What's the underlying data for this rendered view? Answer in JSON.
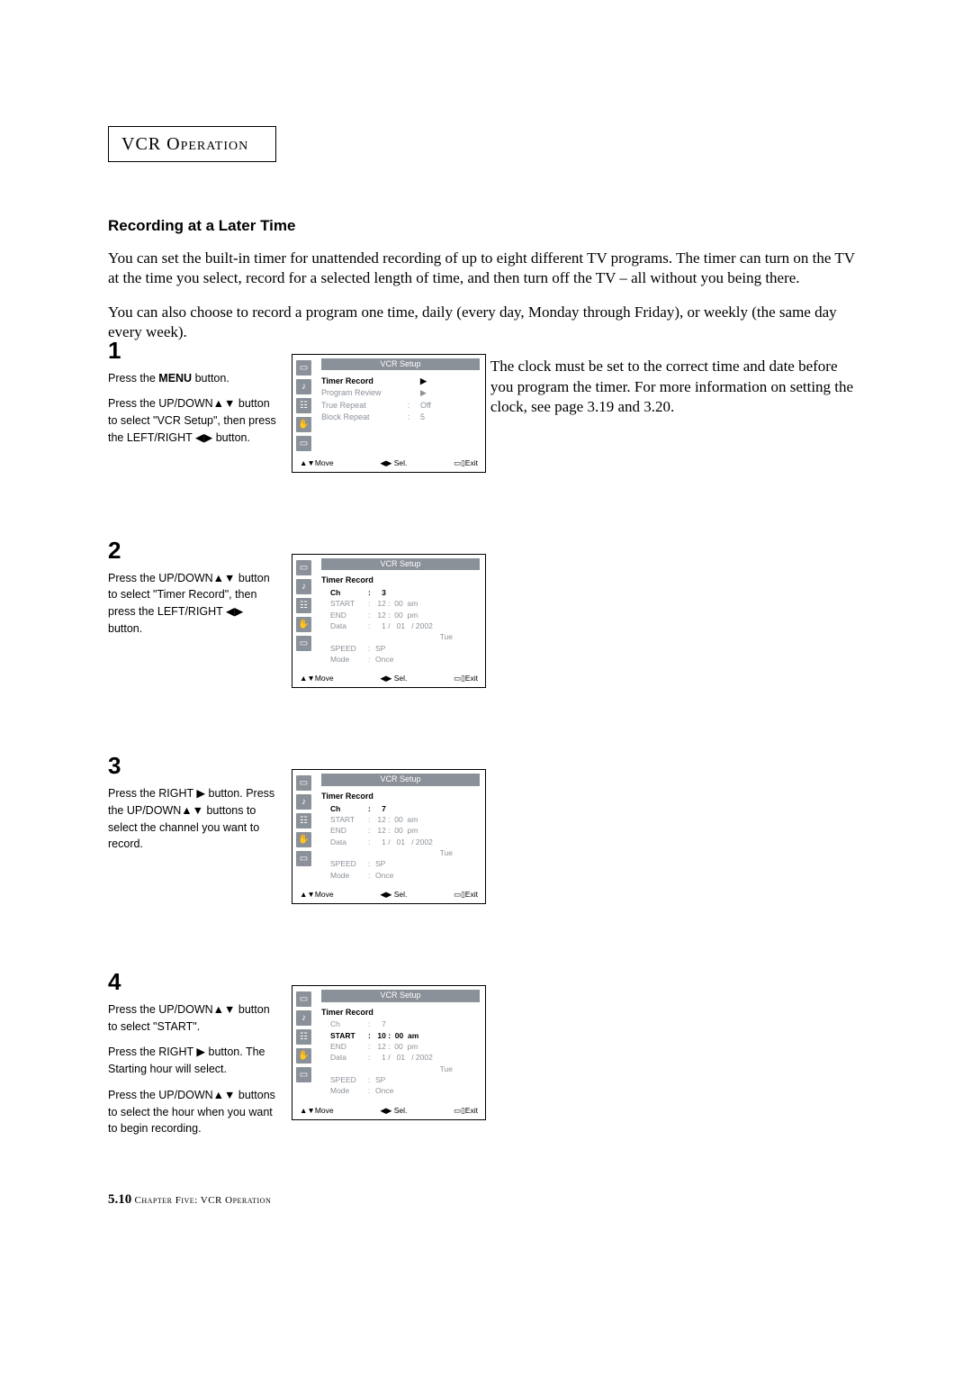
{
  "chapter": {
    "vcr": "VCR ",
    "operation": "Operation"
  },
  "section_heading": "Recording at a Later Time",
  "body_p1": "You can set the built-in timer for unattended recording of up to eight different TV programs. The timer can turn on the TV at the time you select, record for a selected length of time, and then turn off the TV – all without you being there.",
  "body_p2": "You can also choose to record a program one time, daily (every day, Monday through Friday), or weekly (the same day every week).",
  "hint_arrow": "◄",
  "hint_text": "The clock must be set to the correct time and date before you program the timer. For more information on setting the clock, see page 3.19 and 3.20.",
  "steps": {
    "s1": {
      "num": "1",
      "instr_a_pre": "Press the ",
      "instr_a_bold": "MENU",
      "instr_a_post": " button.",
      "instr_b": "Press the UP/DOWN▲▼ button to select \"VCR Setup\", then press the LEFT/RIGHT ◀▶ button.",
      "osd": {
        "title": "VCR Setup",
        "rows": [
          {
            "label": "Timer Record",
            "val": "▶",
            "hl": true
          },
          {
            "label": "Program Review",
            "val": "▶",
            "hl": false
          },
          {
            "label": "True Repeat",
            "val": "Off",
            "hl": false,
            "colon": true
          },
          {
            "label": "Block Repeat",
            "val": "5",
            "hl": false,
            "colon": true
          }
        ]
      }
    },
    "s2": {
      "num": "2",
      "instr_a": "Press the UP/DOWN▲▼ button to select \"Timer Record\", then press the LEFT/RIGHT ◀▶ button.",
      "osd": {
        "title": "VCR Setup",
        "subtitle": "Timer Record",
        "ch_hl": true,
        "ch": "3",
        "start_hl": false,
        "start_h": "12",
        "start_m": "00",
        "start_ap": "am",
        "end_h": "12",
        "end_m": "00",
        "end_ap": "pm",
        "data_m": "1",
        "data_d": "01",
        "data_y": "2002",
        "day": "Tue",
        "speed": "SP",
        "mode": "Once"
      }
    },
    "s3": {
      "num": "3",
      "instr_a": "Press the RIGHT ▶ button. Press the UP/DOWN▲▼ buttons to select the channel you want to record.",
      "osd": {
        "title": "VCR Setup",
        "subtitle": "Timer Record",
        "ch_hl": true,
        "ch": "7",
        "start_hl": false,
        "start_h": "12",
        "start_m": "00",
        "start_ap": "am",
        "end_h": "12",
        "end_m": "00",
        "end_ap": "pm",
        "data_m": "1",
        "data_d": "01",
        "data_y": "2002",
        "day": "Tue",
        "speed": "SP",
        "mode": "Once"
      }
    },
    "s4": {
      "num": "4",
      "instr_a": "Press the UP/DOWN▲▼ button to select \"START\".",
      "instr_b": "Press the RIGHT ▶ button. The Starting hour will select.",
      "instr_c": "Press the UP/DOWN▲▼ buttons to select the hour when you want to begin recording.",
      "osd": {
        "title": "VCR Setup",
        "subtitle": "Timer Record",
        "ch_hl": false,
        "ch": "7",
        "start_hl": true,
        "start_h": "10",
        "start_m": "00",
        "start_ap": "am",
        "end_h": "12",
        "end_m": "00",
        "end_ap": "pm",
        "data_m": "1",
        "data_d": "01",
        "data_y": "2002",
        "day": "Tue",
        "speed": "SP",
        "mode": "Once"
      }
    }
  },
  "osd_nav": {
    "move": "▲▼Move",
    "sel": "◀▶ Sel.",
    "exit": "▭▯Exit"
  },
  "footer": {
    "page": "5.10",
    "chapter": " Chapter Five: VCR Operation"
  }
}
